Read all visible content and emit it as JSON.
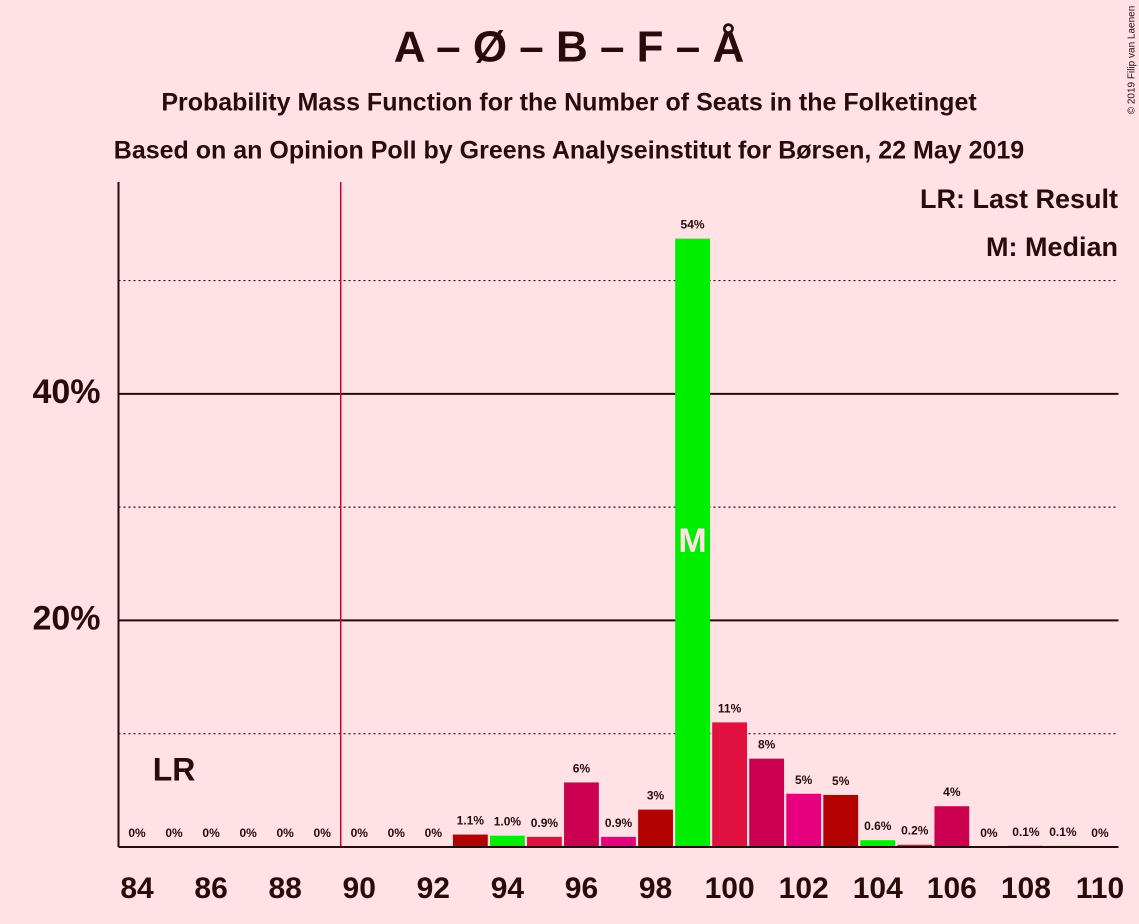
{
  "chart_data": {
    "type": "bar",
    "title": "A – Ø – B – F – Å",
    "subtitle": "Probability Mass Function for the Number of Seats in the Folketinget",
    "subtitle2": "Based on an Opinion Poll by Greens Analyseinstitut for Børsen, 22 May 2019",
    "copyright": "© 2019 Filip van Laenen",
    "legend": [
      "LR: Last Result",
      "M: Median"
    ],
    "x": [
      84,
      85,
      86,
      87,
      88,
      89,
      90,
      91,
      92,
      93,
      94,
      95,
      96,
      97,
      98,
      99,
      100,
      101,
      102,
      103,
      104,
      105,
      106,
      107,
      108,
      109,
      110
    ],
    "values": [
      0,
      0,
      0,
      0,
      0,
      0,
      0,
      0,
      0,
      1.1,
      1.0,
      0.9,
      5.7,
      0.9,
      3.3,
      53.7,
      11.0,
      7.8,
      4.7,
      4.6,
      0.6,
      0.2,
      3.6,
      0,
      0.1,
      0.1,
      0
    ],
    "value_labels": [
      "0%",
      "0%",
      "0%",
      "0%",
      "0%",
      "0%",
      "0%",
      "0%",
      "0%",
      "1.1%",
      "1.0%",
      "0.9%",
      "6%",
      "0.9%",
      "3%",
      "54%",
      "11%",
      "8%",
      "5%",
      "5%",
      "0.6%",
      "0.2%",
      "4%",
      "0%",
      "0.1%",
      "0.1%",
      "0%"
    ],
    "colors": [
      "#b30000",
      "#00ee00",
      "#e0103f",
      "#cc0050",
      "#e6007e",
      "#b30000",
      "#00ee00",
      "#e0103f",
      "#cc0050",
      "#b30000",
      "#00ee00",
      "#e0103f",
      "#cc0050",
      "#e6007e",
      "#b30000",
      "#00ee00",
      "#e0103f",
      "#cc0050",
      "#e6007e",
      "#b30000",
      "#00ee00",
      "#e0103f",
      "#cc0050",
      "#e6007e",
      "#b30000",
      "#00ee00",
      "#e0103f"
    ],
    "xlim": [
      83.5,
      110.5
    ],
    "xticks": [
      84,
      86,
      88,
      90,
      92,
      94,
      96,
      98,
      100,
      102,
      104,
      106,
      108,
      110
    ],
    "ylim": [
      0,
      58.7
    ],
    "yticks": [
      {
        "value": 20,
        "label": "20%"
      },
      {
        "value": 40,
        "label": "40%"
      }
    ],
    "minor_yticks": [
      10,
      30,
      50
    ],
    "majority_line": 89.5,
    "last_result": 85,
    "last_result_label": "LR",
    "median": 99,
    "median_label": "M"
  }
}
